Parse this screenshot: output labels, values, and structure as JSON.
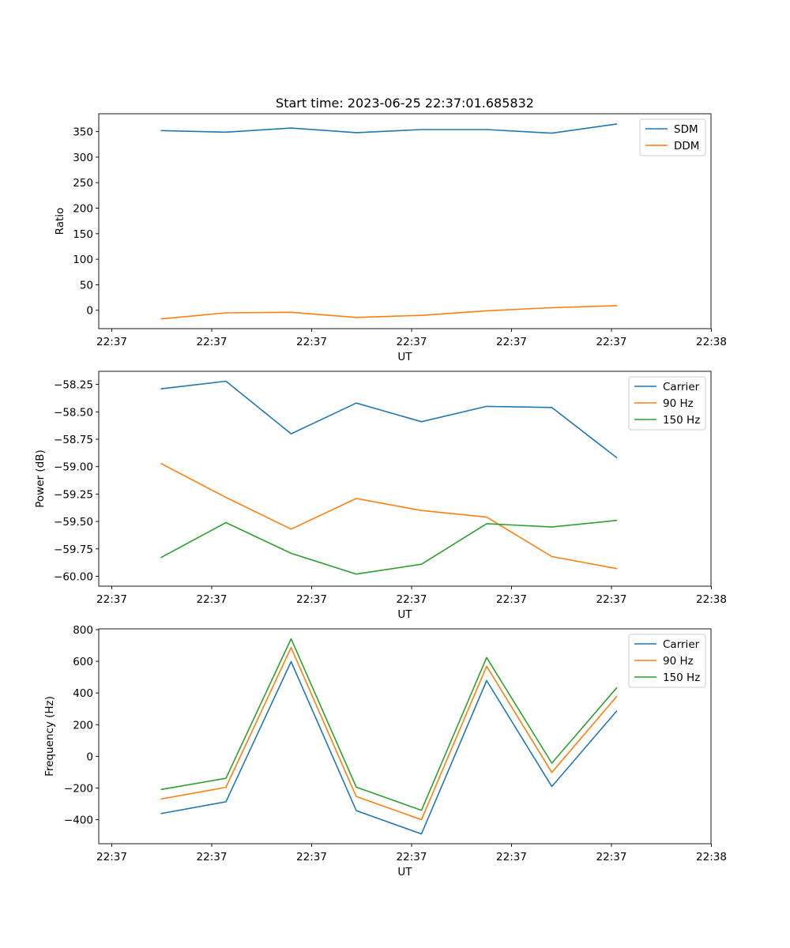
{
  "figure": {
    "title": "Start time: 2023-06-25 22:37:01.685832"
  },
  "chart_data": [
    {
      "type": "line",
      "xlabel": "UT",
      "ylabel": "Ratio",
      "x_tick_labels": [
        "22:37",
        "22:37",
        "22:37",
        "22:37",
        "22:37",
        "22:37",
        "22:38"
      ],
      "yticks": [
        0,
        50,
        100,
        150,
        200,
        250,
        300,
        350
      ],
      "ylim": [
        -36,
        385
      ],
      "legend": "top-right",
      "series": [
        {
          "name": "SDM",
          "color": "#1f77b4",
          "values": [
            352,
            349,
            357,
            348,
            354,
            354,
            347,
            365
          ]
        },
        {
          "name": "DDM",
          "color": "#ff7f0e",
          "values": [
            -17,
            -5,
            -4,
            -14,
            -10,
            -1,
            5,
            9
          ]
        }
      ]
    },
    {
      "type": "line",
      "xlabel": "UT",
      "ylabel": "Power (dB)",
      "x_tick_labels": [
        "22:37",
        "22:37",
        "22:37",
        "22:37",
        "22:37",
        "22:37",
        "22:38"
      ],
      "yticks": [
        -60.0,
        -59.75,
        -59.5,
        -59.25,
        -59.0,
        -58.75,
        -58.5,
        -58.25
      ],
      "ytick_labels": [
        "−60.00",
        "−59.75",
        "−59.50",
        "−59.25",
        "−59.00",
        "−58.75",
        "−58.50",
        "−58.25"
      ],
      "ylim": [
        -60.09,
        -58.13
      ],
      "legend": "top-right",
      "series": [
        {
          "name": "Carrier",
          "color": "#1f77b4",
          "values": [
            -58.29,
            -58.22,
            -58.7,
            -58.42,
            -58.59,
            -58.45,
            -58.46,
            -58.92
          ]
        },
        {
          "name": "90 Hz",
          "color": "#ff7f0e",
          "values": [
            -58.97,
            -59.28,
            -59.57,
            -59.29,
            -59.4,
            -59.46,
            -59.82,
            -59.93
          ]
        },
        {
          "name": "150 Hz",
          "color": "#2ca02c",
          "values": [
            -59.83,
            -59.51,
            -59.79,
            -59.98,
            -59.89,
            -59.52,
            -59.55,
            -59.49
          ]
        }
      ]
    },
    {
      "type": "line",
      "xlabel": "UT",
      "ylabel": "Frequency (Hz)",
      "x_tick_labels": [
        "22:37",
        "22:37",
        "22:37",
        "22:37",
        "22:37",
        "22:37",
        "22:38"
      ],
      "yticks": [
        -400,
        -200,
        0,
        200,
        400,
        600,
        800
      ],
      "ytick_labels": [
        "−400",
        "−200",
        "0",
        "200",
        "400",
        "600",
        "800"
      ],
      "ylim": [
        -552,
        805
      ],
      "legend": "top-right",
      "series": [
        {
          "name": "Carrier",
          "color": "#1f77b4",
          "values": [
            -362,
            -287,
            598,
            -343,
            -490,
            478,
            -191,
            288
          ]
        },
        {
          "name": "90 Hz",
          "color": "#ff7f0e",
          "values": [
            -270,
            -196,
            687,
            -254,
            -400,
            569,
            -102,
            380
          ]
        },
        {
          "name": "150 Hz",
          "color": "#2ca02c",
          "values": [
            -210,
            -139,
            742,
            -195,
            -341,
            624,
            -43,
            435
          ]
        }
      ]
    }
  ]
}
